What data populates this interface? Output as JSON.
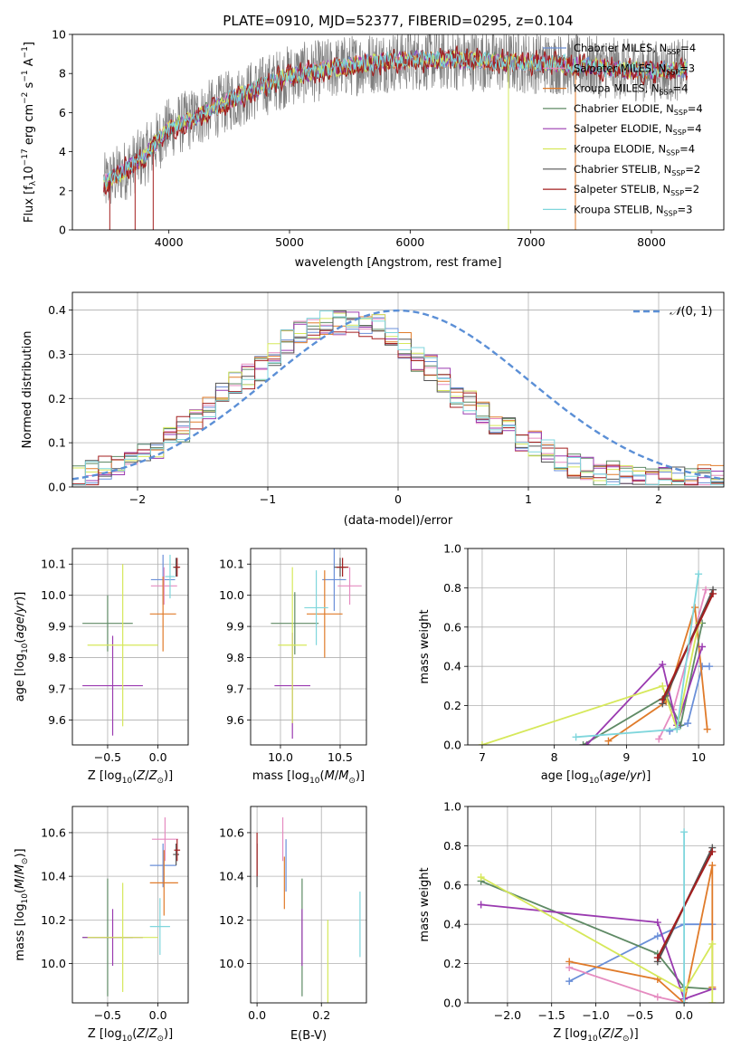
{
  "title": "PLATE=0910, MJD=52377, FIBERID=0295, z=0.104",
  "models": [
    {
      "name": "Chabrier MILES",
      "label": "Chabrier MILES, N",
      "sub": "SSP",
      "n": "=4",
      "color": "#6a8fd8"
    },
    {
      "name": "Salpeter MILES",
      "label": "Salpeter MILES, N",
      "sub": "SSP",
      "n": "=3",
      "color": "#e58bc0"
    },
    {
      "name": "Kroupa MILES",
      "label": "Kroupa MILES, N",
      "sub": "SSP",
      "n": "=4",
      "color": "#e07b2a"
    },
    {
      "name": "Chabrier ELODIE",
      "label": "Chabrier ELODIE, N",
      "sub": "SSP",
      "n": "=4",
      "color": "#5f8a65"
    },
    {
      "name": "Salpeter ELODIE",
      "label": "Salpeter ELODIE, N",
      "sub": "SSP",
      "n": "=4",
      "color": "#9a3ab0"
    },
    {
      "name": "Kroupa ELODIE",
      "label": "Kroupa ELODIE, N",
      "sub": "SSP",
      "n": "=4",
      "color": "#d6e85a"
    },
    {
      "name": "Chabrier STELIB",
      "label": "Chabrier STELIB, N",
      "sub": "SSP",
      "n": "=2",
      "color": "#555555"
    },
    {
      "name": "Salpeter STELIB",
      "label": "Salpeter STELIB, N",
      "sub": "SSP",
      "n": "=2",
      "color": "#a31f1f"
    },
    {
      "name": "Kroupa STELIB",
      "label": "Kroupa STELIB, N",
      "sub": "SSP",
      "n": "=3",
      "color": "#7fd6dc"
    }
  ],
  "chart_data": [
    {
      "id": "spectrum",
      "type": "line",
      "xlabel": "wavelength [Angstrom, rest frame]",
      "ylabel": "Flux [fλ10⁻¹⁷ erg cm⁻² s⁻¹ A⁻¹]",
      "xlim": [
        3200,
        8600
      ],
      "ylim": [
        0,
        10
      ],
      "xticks": [
        4000,
        5000,
        6000,
        7000,
        8000
      ],
      "yticks": [
        0,
        2,
        4,
        6,
        8,
        10
      ],
      "grid": false,
      "legend": "top-right",
      "continuum_x": [
        3450,
        3600,
        3800,
        4000,
        4200,
        4500,
        4800,
        5000,
        5300,
        5600,
        6000,
        6400,
        6800,
        7200,
        7600,
        8000,
        8300
      ],
      "continuum_y": [
        2.3,
        2.9,
        3.8,
        5.2,
        5.7,
        6.6,
        7.4,
        7.9,
        8.2,
        8.5,
        8.7,
        8.7,
        8.6,
        8.5,
        8.3,
        8.1,
        8.2
      ]
    },
    {
      "id": "residuals",
      "type": "histogram",
      "xlabel": "(data-model)/error",
      "ylabel": "Normed distribution",
      "xlim": [
        -2.5,
        2.5
      ],
      "ylim": [
        0,
        0.44
      ],
      "xticks": [
        -2,
        -1,
        0,
        1,
        2
      ],
      "yticks": [
        0.0,
        0.1,
        0.2,
        0.3,
        0.4
      ],
      "grid": true,
      "legend": "top-right",
      "reference_curve": "N(0,1)",
      "bin_width": 0.1,
      "approx_heights": [
        0.02,
        0.03,
        0.04,
        0.05,
        0.07,
        0.08,
        0.09,
        0.11,
        0.13,
        0.15,
        0.18,
        0.21,
        0.23,
        0.25,
        0.27,
        0.3,
        0.33,
        0.35,
        0.36,
        0.37,
        0.37,
        0.37,
        0.36,
        0.36,
        0.34,
        0.32,
        0.29,
        0.27,
        0.24,
        0.21,
        0.19,
        0.17,
        0.15,
        0.13,
        0.11,
        0.1,
        0.08,
        0.06,
        0.05,
        0.04,
        0.03,
        0.03,
        0.02,
        0.02,
        0.02,
        0.02,
        0.02,
        0.02,
        0.02,
        0.02
      ]
    },
    {
      "id": "z_vs_age",
      "type": "errorbar",
      "xlabel": "Z [log10(Z/Z⊙)]",
      "ylabel": "age [log10(age/yr)]",
      "xlim": [
        -0.85,
        0.3
      ],
      "ylim": [
        9.52,
        10.15
      ],
      "xticks": [
        -0.5,
        0.0
      ],
      "yticks": [
        9.6,
        9.7,
        9.8,
        9.9,
        10.0,
        10.1
      ],
      "grid": true,
      "points": [
        {
          "model": "Chabrier MILES",
          "x": 0.05,
          "y": 10.05,
          "xerr": 0.12,
          "yerr": 0.08
        },
        {
          "model": "Salpeter MILES",
          "x": 0.06,
          "y": 10.03,
          "xerr": 0.13,
          "yerr": 0.06
        },
        {
          "model": "Kroupa MILES",
          "x": 0.05,
          "y": 9.94,
          "xerr": 0.13,
          "yerr": 0.12
        },
        {
          "model": "Chabrier ELODIE",
          "x": -0.5,
          "y": 9.91,
          "xerr": 0.25,
          "yerr": 0.09
        },
        {
          "model": "Salpeter ELODIE",
          "x": -0.45,
          "y": 9.71,
          "xerr": 0.3,
          "yerr": 0.16
        },
        {
          "model": "Kroupa ELODIE",
          "x": -0.35,
          "y": 9.84,
          "xerr": 0.35,
          "yerr": 0.26
        },
        {
          "model": "Chabrier STELIB",
          "x": 0.18,
          "y": 10.09,
          "xerr": 0.03,
          "yerr": 0.03
        },
        {
          "model": "Salpeter STELIB",
          "x": 0.19,
          "y": 10.09,
          "xerr": 0.03,
          "yerr": 0.03
        },
        {
          "model": "Kroupa STELIB",
          "x": 0.12,
          "y": 10.06,
          "xerr": 0.05,
          "yerr": 0.07
        }
      ]
    },
    {
      "id": "mass_vs_age",
      "type": "errorbar",
      "xlabel": "mass [log10(M/M⊙)]",
      "ylabel": "",
      "xlim": [
        9.75,
        10.72
      ],
      "ylim": [
        9.52,
        10.15
      ],
      "xticks": [
        10.0,
        10.5
      ],
      "yticks": [
        9.6,
        9.7,
        9.8,
        9.9,
        10.0,
        10.1
      ],
      "grid": true,
      "points": [
        {
          "model": "Chabrier MILES",
          "x": 10.45,
          "y": 10.05,
          "xerr": 0.1,
          "yerr": 0.1
        },
        {
          "model": "Salpeter MILES",
          "x": 10.58,
          "y": 10.03,
          "xerr": 0.1,
          "yerr": 0.06
        },
        {
          "model": "Kroupa MILES",
          "x": 10.37,
          "y": 9.94,
          "xerr": 0.15,
          "yerr": 0.14
        },
        {
          "model": "Chabrier ELODIE",
          "x": 10.12,
          "y": 9.91,
          "xerr": 0.2,
          "yerr": 0.1
        },
        {
          "model": "Salpeter ELODIE",
          "x": 10.1,
          "y": 9.71,
          "xerr": 0.15,
          "yerr": 0.17
        },
        {
          "model": "Kroupa ELODIE",
          "x": 10.1,
          "y": 9.84,
          "xerr": 0.12,
          "yerr": 0.25
        },
        {
          "model": "Chabrier STELIB",
          "x": 10.5,
          "y": 10.09,
          "xerr": 0.05,
          "yerr": 0.03
        },
        {
          "model": "Salpeter STELIB",
          "x": 10.52,
          "y": 10.09,
          "xerr": 0.05,
          "yerr": 0.03
        },
        {
          "model": "Kroupa STELIB",
          "x": 10.3,
          "y": 9.96,
          "xerr": 0.1,
          "yerr": 0.12
        }
      ]
    },
    {
      "id": "age_vs_weight",
      "type": "line",
      "xlabel": "age [log10(age/yr)]",
      "ylabel": "mass weight",
      "xlim": [
        6.8,
        10.35
      ],
      "ylim": [
        0,
        1
      ],
      "xticks": [
        7,
        8,
        9,
        10
      ],
      "yticks": [
        0.0,
        0.2,
        0.4,
        0.6,
        0.8,
        1.0
      ],
      "grid": true,
      "series": [
        {
          "model": "Chabrier MILES",
          "x": [
            9.6,
            9.85,
            10.05,
            10.15
          ],
          "y": [
            0.07,
            0.11,
            0.4,
            0.4
          ]
        },
        {
          "model": "Salpeter MILES",
          "x": [
            9.45,
            9.65,
            10.1
          ],
          "y": [
            0.03,
            0.18,
            0.79
          ]
        },
        {
          "model": "Kroupa MILES",
          "x": [
            8.75,
            9.55,
            9.95,
            10.12
          ],
          "y": [
            0.02,
            0.22,
            0.7,
            0.08
          ]
        },
        {
          "model": "Chabrier ELODIE",
          "x": [
            8.4,
            9.55,
            9.75,
            10.05
          ],
          "y": [
            0.0,
            0.25,
            0.1,
            0.62
          ]
        },
        {
          "model": "Salpeter ELODIE",
          "x": [
            8.45,
            9.5,
            9.7,
            10.05
          ],
          "y": [
            0.0,
            0.41,
            0.1,
            0.5
          ]
        },
        {
          "model": "Kroupa ELODIE",
          "x": [
            7.0,
            9.5,
            9.7,
            10.0
          ],
          "y": [
            0.0,
            0.3,
            0.08,
            0.62
          ]
        },
        {
          "model": "Chabrier STELIB",
          "x": [
            9.5,
            10.2
          ],
          "y": [
            0.21,
            0.79
          ]
        },
        {
          "model": "Salpeter STELIB",
          "x": [
            9.5,
            10.2
          ],
          "y": [
            0.23,
            0.77
          ]
        },
        {
          "model": "Kroupa STELIB",
          "x": [
            8.3,
            9.7,
            10.0
          ],
          "y": [
            0.04,
            0.08,
            0.87
          ]
        }
      ]
    },
    {
      "id": "z_vs_mass",
      "type": "errorbar",
      "xlabel": "Z [log10(Z/Z⊙)]",
      "ylabel": "mass [log10(M/M⊙)]",
      "xlim": [
        -0.85,
        0.3
      ],
      "ylim": [
        9.82,
        10.72
      ],
      "xticks": [
        -0.5,
        0.0
      ],
      "yticks": [
        10.0,
        10.2,
        10.4,
        10.6
      ],
      "grid": true,
      "points": [
        {
          "model": "Chabrier MILES",
          "x": 0.05,
          "y": 10.45,
          "xerr": 0.13,
          "yerr": 0.1
        },
        {
          "model": "Salpeter MILES",
          "x": 0.07,
          "y": 10.57,
          "xerr": 0.13,
          "yerr": 0.1
        },
        {
          "model": "Kroupa MILES",
          "x": 0.06,
          "y": 10.37,
          "xerr": 0.14,
          "yerr": 0.15
        },
        {
          "model": "Chabrier ELODIE",
          "x": -0.5,
          "y": 10.12,
          "xerr": 0.25,
          "yerr": 0.27
        },
        {
          "model": "Salpeter ELODIE",
          "x": -0.45,
          "y": 10.12,
          "xerr": 0.3,
          "yerr": 0.13
        },
        {
          "model": "Kroupa ELODIE",
          "x": -0.35,
          "y": 10.12,
          "xerr": 0.35,
          "yerr": 0.25
        },
        {
          "model": "Chabrier STELIB",
          "x": 0.18,
          "y": 10.5,
          "xerr": 0.03,
          "yerr": 0.05
        },
        {
          "model": "Salpeter STELIB",
          "x": 0.19,
          "y": 10.52,
          "xerr": 0.03,
          "yerr": 0.05
        },
        {
          "model": "Kroupa STELIB",
          "x": 0.02,
          "y": 10.17,
          "xerr": 0.1,
          "yerr": 0.13
        }
      ]
    },
    {
      "id": "ebv_vs_mass",
      "type": "errorbar",
      "xlabel": "E(B-V)",
      "ylabel": "",
      "xlim": [
        -0.02,
        0.34
      ],
      "ylim": [
        9.82,
        10.72
      ],
      "xticks": [
        0.0,
        0.2
      ],
      "yticks": [
        10.0,
        10.2,
        10.4,
        10.6
      ],
      "grid": true,
      "points": [
        {
          "model": "Chabrier MILES",
          "x": 0.09,
          "y": 10.45,
          "xerr": 0,
          "yerr": 0.12
        },
        {
          "model": "Salpeter MILES",
          "x": 0.08,
          "y": 10.57,
          "xerr": 0,
          "yerr": 0.1
        },
        {
          "model": "Kroupa MILES",
          "x": 0.085,
          "y": 10.37,
          "xerr": 0,
          "yerr": 0.12
        },
        {
          "model": "Chabrier ELODIE",
          "x": 0.14,
          "y": 10.12,
          "xerr": 0,
          "yerr": 0.27
        },
        {
          "model": "Salpeter ELODIE",
          "x": 0.14,
          "y": 10.12,
          "xerr": 0,
          "yerr": 0.13
        },
        {
          "model": "Kroupa ELODIE",
          "x": 0.22,
          "y": 10.0,
          "xerr": 0,
          "yerr": 0.2
        },
        {
          "model": "Chabrier STELIB",
          "x": 0.0,
          "y": 10.45,
          "xerr": 0,
          "yerr": 0.1
        },
        {
          "model": "Salpeter STELIB",
          "x": 0.0,
          "y": 10.5,
          "xerr": 0,
          "yerr": 0.1
        },
        {
          "model": "Kroupa STELIB",
          "x": 0.32,
          "y": 10.18,
          "xerr": 0,
          "yerr": 0.15
        }
      ]
    },
    {
      "id": "z_vs_weight",
      "type": "line",
      "xlabel": "Z [log10(Z/Z⊙)]",
      "ylabel": "mass weight",
      "xlim": [
        -2.45,
        0.45
      ],
      "ylim": [
        0,
        1
      ],
      "xticks": [
        -2.0,
        -1.5,
        -1.0,
        -0.5,
        0.0
      ],
      "yticks": [
        0.0,
        0.2,
        0.4,
        0.6,
        0.8,
        1.0
      ],
      "grid": true,
      "series": [
        {
          "model": "Chabrier MILES",
          "x": [
            -1.3,
            -0.3,
            0.0,
            0.32
          ],
          "y": [
            0.11,
            0.34,
            0.4,
            0.4
          ]
        },
        {
          "model": "Salpeter MILES",
          "x": [
            -1.3,
            -0.3,
            0.0
          ],
          "y": [
            0.18,
            0.03,
            0.0
          ]
        },
        {
          "model": "Kroupa MILES",
          "x": [
            -1.3,
            -0.3,
            0.0,
            0.32,
            0.32
          ],
          "y": [
            0.21,
            0.12,
            0.0,
            0.7,
            0.08
          ]
        },
        {
          "model": "Chabrier ELODIE",
          "x": [
            -2.3,
            -0.3,
            0.0,
            0.32
          ],
          "y": [
            0.62,
            0.25,
            0.08,
            0.07
          ]
        },
        {
          "model": "Salpeter ELODIE",
          "x": [
            -2.3,
            -0.3,
            0.0,
            0.32
          ],
          "y": [
            0.5,
            0.41,
            0.02,
            0.07
          ]
        },
        {
          "model": "Kroupa ELODIE",
          "x": [
            -2.3,
            0.0,
            0.32,
            0.32
          ],
          "y": [
            0.64,
            0.06,
            0.3,
            0.0
          ]
        },
        {
          "model": "Chabrier STELIB",
          "x": [
            -0.3,
            0.32
          ],
          "y": [
            0.21,
            0.79
          ]
        },
        {
          "model": "Salpeter STELIB",
          "x": [
            -0.3,
            0.32
          ],
          "y": [
            0.23,
            0.77
          ]
        },
        {
          "model": "Kroupa STELIB",
          "x": [
            0.0,
            0.0
          ],
          "y": [
            0.0,
            0.87
          ]
        }
      ]
    }
  ]
}
